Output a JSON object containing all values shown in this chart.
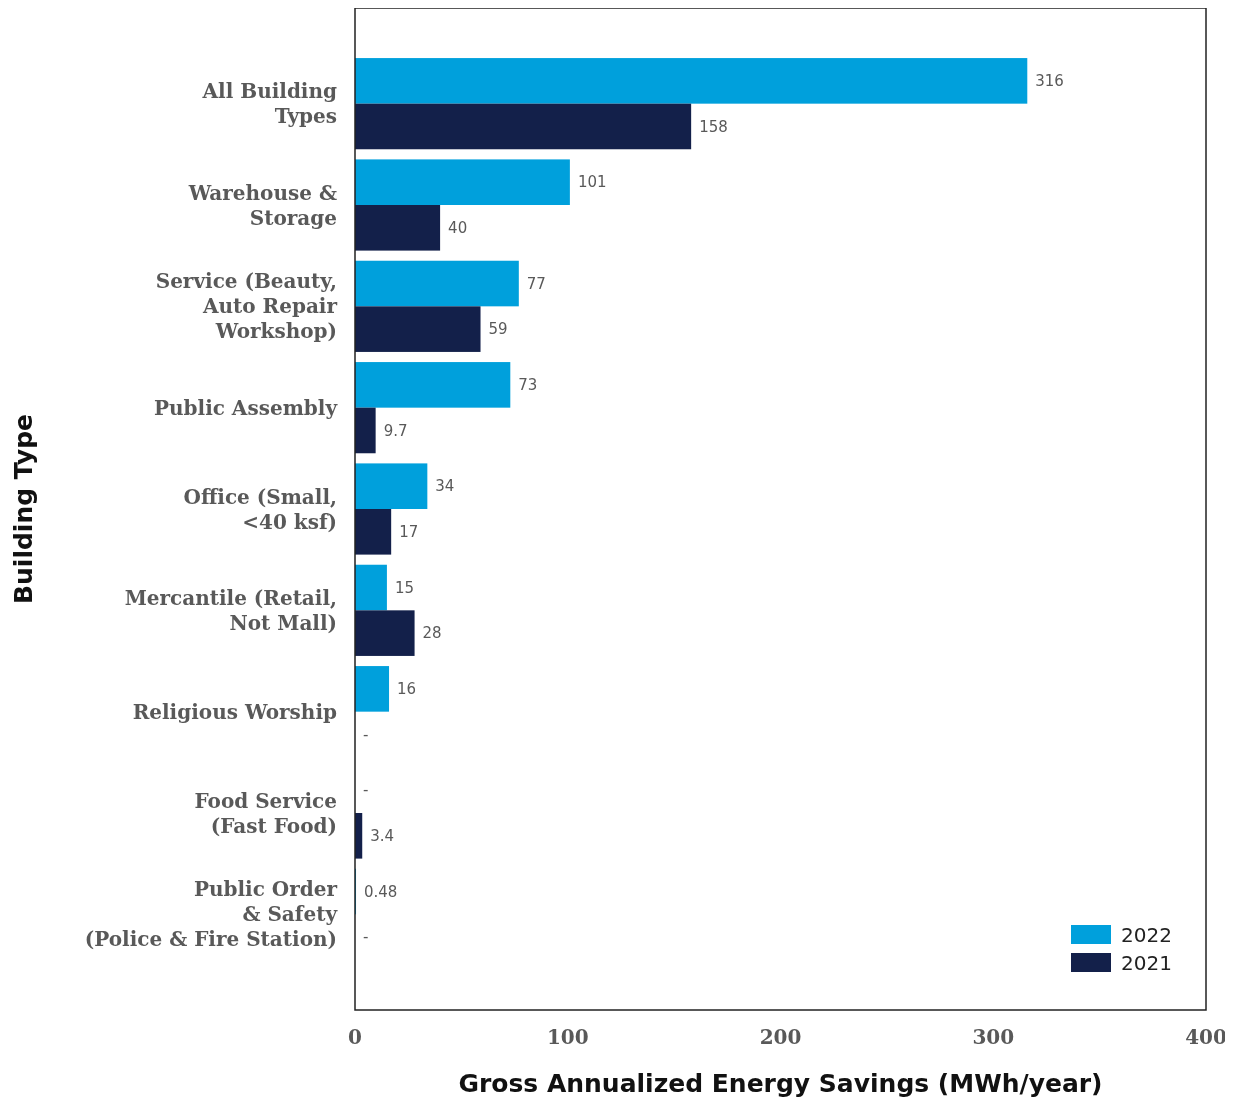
{
  "chart_data": {
    "type": "bar",
    "orientation": "horizontal",
    "xlabel": "Gross Annualized Energy Savings (MWh/year)",
    "ylabel": "Building Type",
    "categories": [
      "All Building\nTypes",
      "Warehouse &\nStorage",
      "Service (Beauty,\nAuto Repair\nWorkshop)",
      "Public Assembly",
      "Office (Small,\n<40 ksf)",
      "Mercantile (Retail,\nNot Mall)",
      "Religious Worship",
      "Food Service\n(Fast Food)",
      "Public Order\n& Safety\n(Police & Fire Station)"
    ],
    "series": [
      {
        "name": "2022",
        "color": "#00a0dc",
        "values": [
          316,
          101,
          77,
          73,
          34,
          15,
          16,
          null,
          0.48
        ],
        "value_labels": [
          "316",
          "101",
          "77",
          "73",
          "34",
          "15",
          "16",
          "-",
          "0.48"
        ]
      },
      {
        "name": "2021",
        "color": "#13204a",
        "values": [
          158,
          40,
          59,
          9.7,
          17,
          28,
          null,
          3.4,
          null
        ],
        "value_labels": [
          "158",
          "40",
          "59",
          "9.7",
          "17",
          "28",
          "-",
          "3.4",
          "-"
        ]
      }
    ],
    "xlim": [
      0,
      400
    ],
    "xticks": [
      0,
      100,
      200,
      300,
      400
    ],
    "grid": false,
    "legend": "bottom right"
  }
}
